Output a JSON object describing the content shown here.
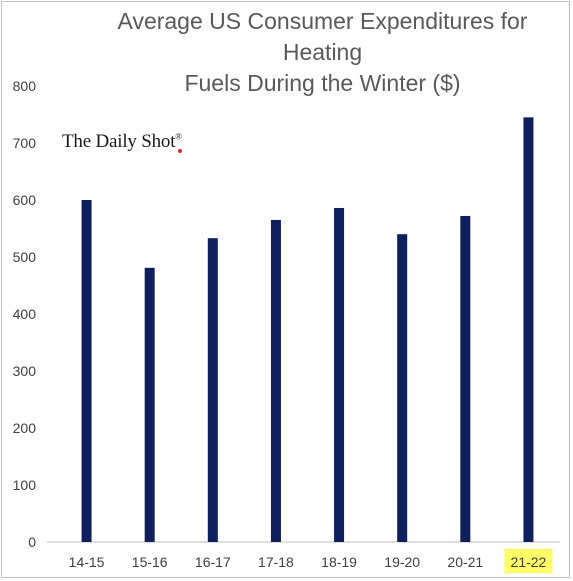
{
  "chart_data": {
    "type": "bar",
    "title_lines": [
      "Average US Consumer Expenditures for Heating",
      "Fuels During the Winter ($)"
    ],
    "categories": [
      "14-15",
      "15-16",
      "16-17",
      "17-18",
      "18-19",
      "19-20",
      "20-21",
      "21-22"
    ],
    "values": [
      600,
      481,
      533,
      565,
      586,
      540,
      572,
      745
    ],
    "highlighted_category": "21-22",
    "y_ticks": [
      0,
      100,
      200,
      300,
      400,
      500,
      600,
      700,
      800
    ],
    "ylim": [
      0,
      800
    ],
    "grid": false,
    "legend": "none",
    "bar_color": "#0d1f5c",
    "highlight_color": "#ffff66"
  },
  "watermark": {
    "text": "The Daily Shot",
    "mark": "®"
  }
}
